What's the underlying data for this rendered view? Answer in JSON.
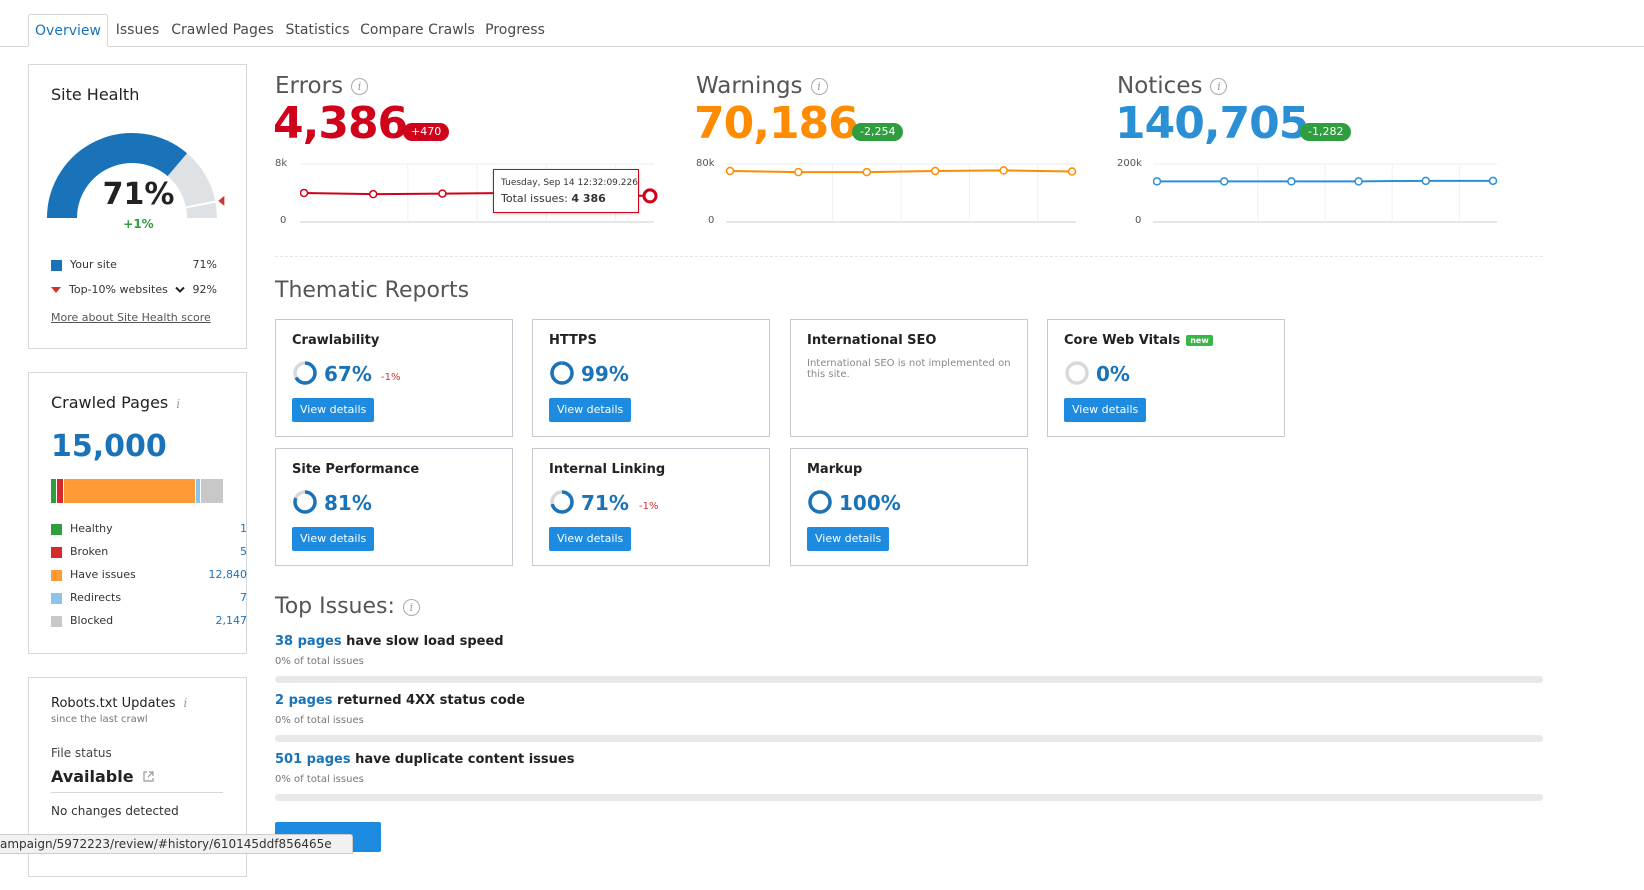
{
  "tabs": [
    "Overview",
    "Issues",
    "Crawled Pages",
    "Statistics",
    "Compare Crawls",
    "Progress"
  ],
  "site_health": {
    "title": "Site Health",
    "value": "71%",
    "delta": "+1%",
    "score": 71,
    "top10_score": 92,
    "legend": [
      {
        "label": "Your site",
        "value": "71%",
        "color": "#1a73b8"
      },
      {
        "label": "Top-10% websites",
        "value": "92%",
        "color": "#d32f2f"
      }
    ],
    "more_link": "More about Site Health score"
  },
  "crawled_pages": {
    "title": "Crawled Pages",
    "total": "15,000",
    "legend": [
      {
        "label": "Healthy",
        "value": "1",
        "color": "#2e9e3e"
      },
      {
        "label": "Broken",
        "value": "5",
        "color": "#d62a2a"
      },
      {
        "label": "Have issues",
        "value": "12,840",
        "color": "#ff9a36"
      },
      {
        "label": "Redirects",
        "value": "7",
        "color": "#8cc3ea"
      },
      {
        "label": "Blocked",
        "value": "2,147",
        "color": "#c8c8c8"
      }
    ]
  },
  "robots": {
    "title": "Robots.txt Updates",
    "subtitle": "since the last crawl",
    "status_label": "File status",
    "status_value": "Available",
    "changes": "No changes detected"
  },
  "metrics": [
    {
      "label": "Errors",
      "value": "4,386",
      "badge": "+470",
      "color": "#d0021b",
      "badge_color": "#d0021b",
      "y_max": "8k",
      "y_min": "0",
      "points": [
        0.5,
        0.48,
        0.49,
        0.5,
        0.47,
        0.45
      ]
    },
    {
      "label": "Warnings",
      "value": "70,186",
      "badge": "-2,254",
      "color": "#ff8c00",
      "badge_color": "#2e9e3e",
      "y_max": "80k",
      "y_min": "0",
      "points": [
        0.88,
        0.86,
        0.86,
        0.88,
        0.89,
        0.87
      ]
    },
    {
      "label": "Notices",
      "value": "140,705",
      "badge": "-1,282",
      "color": "#2b8fd6",
      "badge_color": "#2e9e3e",
      "y_max": "200k",
      "y_min": "0",
      "points": [
        0.7,
        0.7,
        0.7,
        0.7,
        0.71,
        0.71
      ]
    }
  ],
  "tooltip": {
    "date": "Tuesday, Sep 14 12:32:09.226",
    "label": "Total issues:",
    "value": "4 386"
  },
  "thematic": {
    "title": "Thematic Reports",
    "view_label": "View details",
    "new_label": "new",
    "cards": [
      {
        "name": "Crawlability",
        "pct": "67%",
        "percent": 67,
        "delta": "-1%"
      },
      {
        "name": "HTTPS",
        "pct": "99%",
        "percent": 99,
        "delta": ""
      },
      {
        "name": "International SEO",
        "note": "International SEO is not implemented on this site."
      },
      {
        "name": "Core Web Vitals",
        "pct": "0%",
        "percent": 0,
        "delta": "",
        "is_new": true
      },
      {
        "name": "Site Performance",
        "pct": "81%",
        "percent": 81,
        "delta": ""
      },
      {
        "name": "Internal Linking",
        "pct": "71%",
        "percent": 71,
        "delta": "-1%"
      },
      {
        "name": "Markup",
        "pct": "100%",
        "percent": 100,
        "delta": ""
      }
    ]
  },
  "top_issues": {
    "title": "Top Issues:",
    "items": [
      {
        "link": "38 pages",
        "text": " have slow load speed",
        "sub": "0% of total issues"
      },
      {
        "link": "2 pages",
        "text": " returned 4XX status code",
        "sub": "0% of total issues"
      },
      {
        "link": "501 pages",
        "text": " have duplicate content issues",
        "sub": "0% of total issues"
      }
    ]
  },
  "status_url": "ampaign/5972223/review/#history/610145ddf856465e"
}
